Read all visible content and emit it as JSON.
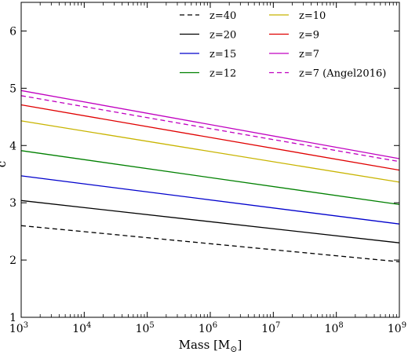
{
  "chart_data": {
    "type": "line",
    "xlabel": "Mass [M",
    "xlabel_sub": "⊙",
    "xlabel_close": "]",
    "ylabel": "c",
    "xscale": "log",
    "xlim": [
      1000,
      1000000000
    ],
    "ylim": [
      1,
      6.5
    ],
    "grid": false,
    "legend_position": "top-right",
    "x_ticks": [
      {
        "value": 1000,
        "base": "10",
        "exp": "3"
      },
      {
        "value": 10000,
        "base": "10",
        "exp": "4"
      },
      {
        "value": 100000,
        "base": "10",
        "exp": "5"
      },
      {
        "value": 1000000,
        "base": "10",
        "exp": "6"
      },
      {
        "value": 10000000,
        "base": "10",
        "exp": "7"
      },
      {
        "value": 100000000,
        "base": "10",
        "exp": "8"
      },
      {
        "value": 1000000000,
        "base": "10",
        "exp": "9"
      }
    ],
    "y_ticks": [
      {
        "value": 1,
        "label": "1"
      },
      {
        "value": 2,
        "label": "2"
      },
      {
        "value": 3,
        "label": "3"
      },
      {
        "value": 4,
        "label": "4"
      },
      {
        "value": 5,
        "label": "5"
      },
      {
        "value": 6,
        "label": "6"
      }
    ],
    "series": [
      {
        "name": "z=40",
        "color": "#000000",
        "dashed": true,
        "x": [
          1000,
          1000000000
        ],
        "y": [
          2.6,
          1.97
        ]
      },
      {
        "name": "z=20",
        "color": "#000000",
        "dashed": false,
        "x": [
          1000,
          1000000000
        ],
        "y": [
          3.04,
          2.3
        ]
      },
      {
        "name": "z=15",
        "color": "#0000cc",
        "dashed": false,
        "x": [
          1000,
          1000000000
        ],
        "y": [
          3.47,
          2.63
        ]
      },
      {
        "name": "z=12",
        "color": "#008000",
        "dashed": false,
        "x": [
          1000,
          1000000000
        ],
        "y": [
          3.91,
          2.97
        ]
      },
      {
        "name": "z=10",
        "color": "#c8b400",
        "dashed": false,
        "x": [
          1000,
          1000000000
        ],
        "y": [
          4.43,
          3.36
        ]
      },
      {
        "name": "z=9",
        "color": "#e00000",
        "dashed": false,
        "x": [
          1000,
          1000000000
        ],
        "y": [
          4.71,
          3.57
        ]
      },
      {
        "name": "z=7",
        "color": "#c000c0",
        "dashed": false,
        "x": [
          1000,
          1000000000
        ],
        "y": [
          4.96,
          3.77
        ]
      },
      {
        "name": "z=7 (Angel2016)",
        "color": "#c000c0",
        "dashed": true,
        "x": [
          1000,
          1000000000
        ],
        "y": [
          4.87,
          3.72
        ]
      }
    ],
    "legend_order": [
      0,
      4,
      1,
      5,
      2,
      6,
      3,
      7
    ]
  }
}
